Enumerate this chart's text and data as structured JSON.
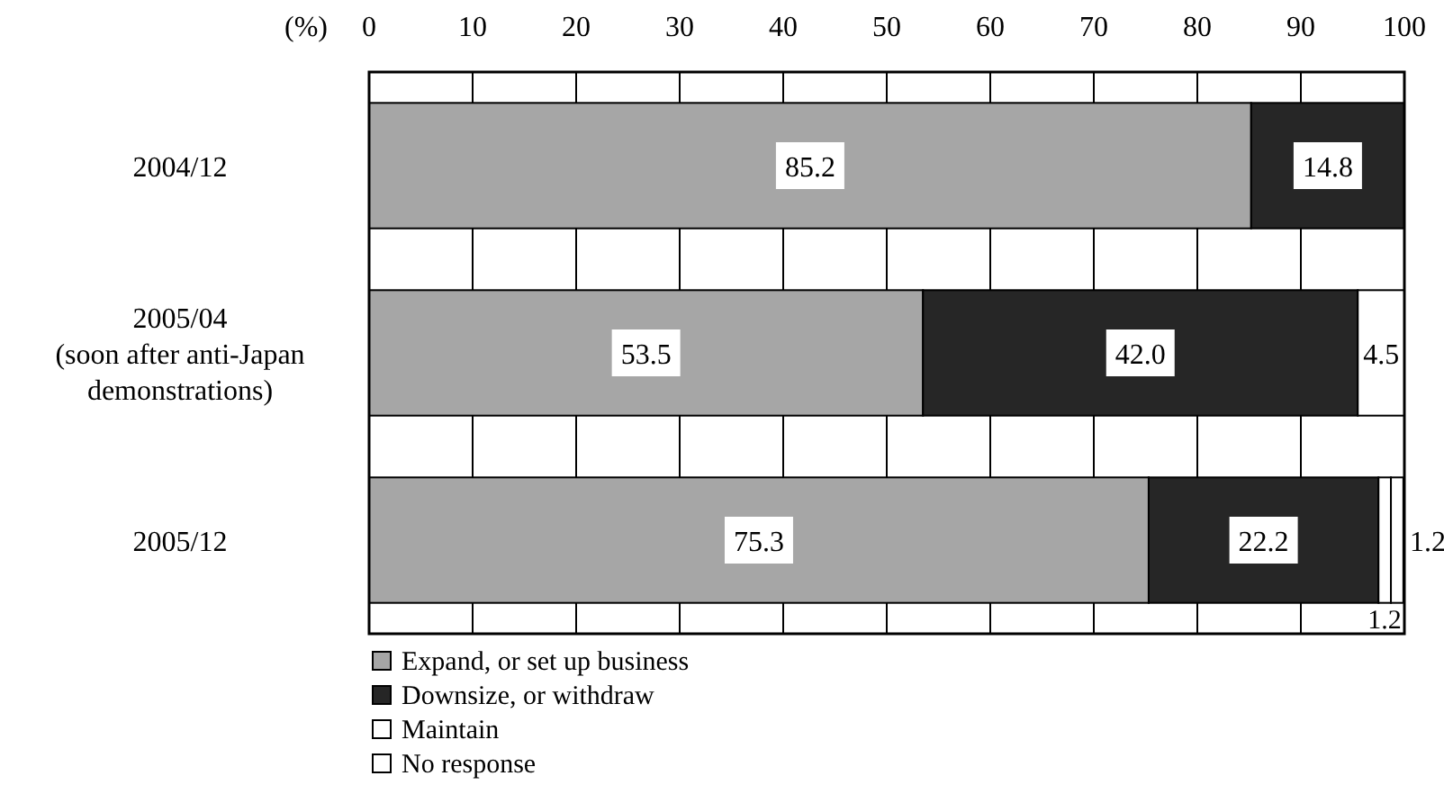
{
  "chart_data": {
    "type": "bar",
    "orientation": "horizontal",
    "stacked": true,
    "xlabel": "(%)",
    "categories": [
      "2004/12",
      "2005/04\n(soon after anti-Japan\ndemonstrations)",
      "2005/12"
    ],
    "series": [
      {
        "name": "Expand, or set up business",
        "color": "#a6a6a6",
        "values": [
          85.2,
          53.5,
          75.3
        ],
        "value_labels": [
          "85.2",
          "53.5",
          "75.3"
        ]
      },
      {
        "name": "Downsize, or withdraw",
        "color": "#262626",
        "values": [
          14.8,
          42.0,
          22.2
        ],
        "value_labels": [
          "14.8",
          "42.0",
          "22.2"
        ]
      },
      {
        "name": "Maintain",
        "color": "#ffffff",
        "values": [
          null,
          4.5,
          1.2
        ],
        "value_labels": [
          null,
          "4.5",
          "1.2"
        ]
      },
      {
        "name": "No response",
        "color": "#ffffff",
        "values": [
          null,
          null,
          1.2
        ],
        "value_labels": [
          null,
          null,
          "1.2"
        ]
      }
    ],
    "xlim": [
      0,
      100
    ],
    "xticks": [
      0,
      10,
      20,
      30,
      40,
      50,
      60,
      70,
      80,
      90,
      100
    ],
    "grid": "x",
    "legend": "bottom"
  }
}
